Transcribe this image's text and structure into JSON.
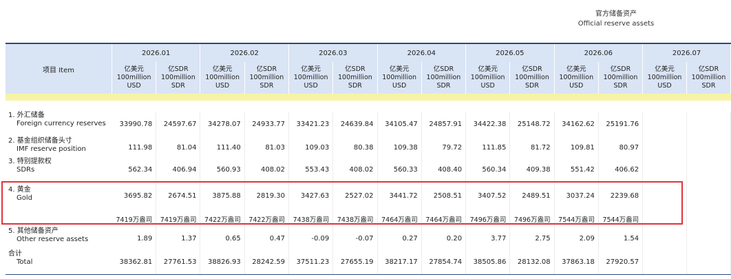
{
  "header": {
    "title_zh": "官方储备资产",
    "title_en": "Official reserve assets"
  },
  "table": {
    "item_header": "项目 Item",
    "periods": [
      "2026.01",
      "2026.02",
      "2026.03",
      "2026.04",
      "2026.05",
      "2026.06",
      "2026.07"
    ],
    "unit_usd": {
      "line1": "亿美元",
      "line2": "100million",
      "line3": "USD"
    },
    "unit_sdr": {
      "line1": "亿SDR",
      "line2": "100million",
      "line3": "SDR"
    },
    "rows": [
      {
        "zh": "1. 外汇储备",
        "en": "Foreign currency reserves",
        "values": [
          "33990.78",
          "24597.67",
          "34278.07",
          "24933.77",
          "33421.23",
          "24639.84",
          "34105.47",
          "24857.91",
          "34422.38",
          "25148.72",
          "34162.62",
          "25191.76",
          "",
          ""
        ]
      },
      {
        "zh": "2. 基金组织储备头寸",
        "en": "IMF reserve position",
        "values": [
          "111.98",
          "81.04",
          "111.40",
          "81.03",
          "109.03",
          "80.38",
          "109.38",
          "79.72",
          "111.85",
          "81.72",
          "109.81",
          "80.97",
          "",
          ""
        ]
      },
      {
        "zh": "3. 特别提款权",
        "en": "SDRs",
        "values": [
          "562.34",
          "406.94",
          "560.93",
          "408.02",
          "553.43",
          "408.02",
          "560.33",
          "408.40",
          "560.34",
          "409.38",
          "551.42",
          "406.62",
          "",
          ""
        ]
      },
      {
        "zh": "4. 黄金",
        "en": "Gold",
        "values": [
          "3695.82",
          "2674.51",
          "3875.88",
          "2819.30",
          "3427.63",
          "2527.02",
          "3441.72",
          "2508.51",
          "3407.52",
          "2489.51",
          "3037.24",
          "2239.68",
          "",
          ""
        ]
      },
      {
        "zh": "",
        "en": "",
        "values": [
          "7419万盎司",
          "7419万盎司",
          "7422万盎司",
          "7422万盎司",
          "7438万盎司",
          "7438万盎司",
          "7464万盎司",
          "7464万盎司",
          "7496万盎司",
          "7496万盎司",
          "7544万盎司",
          "7544万盎司",
          "",
          ""
        ]
      },
      {
        "zh": "5. 其他储备资产",
        "en": "Other reserve assets",
        "values": [
          "1.89",
          "1.37",
          "0.65",
          "0.47",
          "-0.09",
          "-0.07",
          "0.27",
          "0.20",
          "3.77",
          "2.75",
          "2.09",
          "1.54",
          "",
          ""
        ]
      },
      {
        "zh": "合计",
        "en": "Total",
        "values": [
          "38362.81",
          "27761.53",
          "38826.93",
          "28242.59",
          "37511.23",
          "27655.19",
          "38217.17",
          "27854.74",
          "38505.86",
          "28132.08",
          "37863.18",
          "27920.57",
          "",
          ""
        ]
      }
    ]
  },
  "highlight": {
    "color": "#e0333a"
  }
}
